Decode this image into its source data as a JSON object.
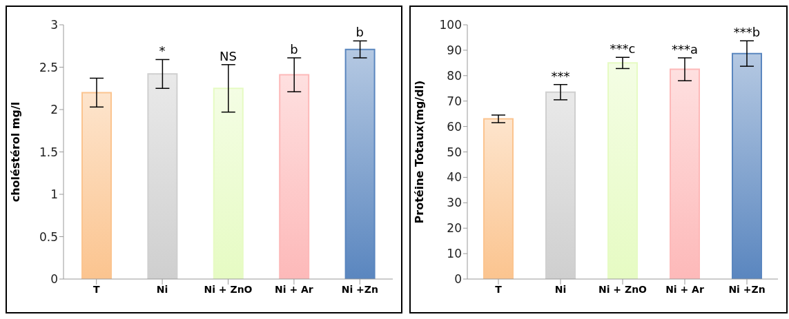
{
  "chart_data": [
    {
      "type": "bar",
      "ylabel": "choléstérol mg/l",
      "categories": [
        "T",
        "Ni",
        "Ni + ZnO",
        "Ni + Ar",
        "Ni +Zn"
      ],
      "values": [
        2.2,
        2.42,
        2.25,
        2.41,
        2.71
      ],
      "errors": [
        0.17,
        0.17,
        0.28,
        0.2,
        0.1
      ],
      "colors": [
        "#fbc48f",
        "#cfcfcf",
        "#e6fbc3",
        "#fdb9b9",
        "#5a86bf"
      ],
      "ylim": [
        0,
        3
      ],
      "yticks": [
        0,
        0.5,
        1,
        1.5,
        2,
        2.5,
        3
      ],
      "grid": false,
      "legend": false,
      "annotations": [
        {
          "text": "*",
          "x": "Ni",
          "y": 2.59
        },
        {
          "text": "NS",
          "x": "Ni + ZnO",
          "y": 2.53
        },
        {
          "text": "b",
          "x": "Ni + Ar",
          "y": 2.61
        },
        {
          "text": "b",
          "x": "Ni +Zn",
          "y": 2.81
        }
      ]
    },
    {
      "type": "bar",
      "ylabel": "Protéine Totaux(mg/dl)",
      "categories": [
        "T",
        "Ni",
        "Ni + ZnO",
        "Ni + Ar",
        "Ni +Zn"
      ],
      "values": [
        63,
        73.5,
        85,
        82.5,
        88.7
      ],
      "errors": [
        1.5,
        3,
        2.2,
        4.5,
        5
      ],
      "colors": [
        "#fbc48f",
        "#cfcfcf",
        "#e6fbc3",
        "#fdb9b9",
        "#5a86bf"
      ],
      "ylim": [
        0,
        100
      ],
      "yticks": [
        0,
        10,
        20,
        30,
        40,
        50,
        60,
        70,
        80,
        90,
        100
      ],
      "grid": false,
      "legend": false,
      "annotations": [
        {
          "text": "***",
          "x": "Ni",
          "y": 76.5
        },
        {
          "text": "***c",
          "x": "Ni + ZnO",
          "y": 87.2
        },
        {
          "text": "***a",
          "x": "Ni + Ar",
          "y": 87
        },
        {
          "text": "***b",
          "x": "Ni +Zn",
          "y": 93.8
        }
      ]
    }
  ]
}
